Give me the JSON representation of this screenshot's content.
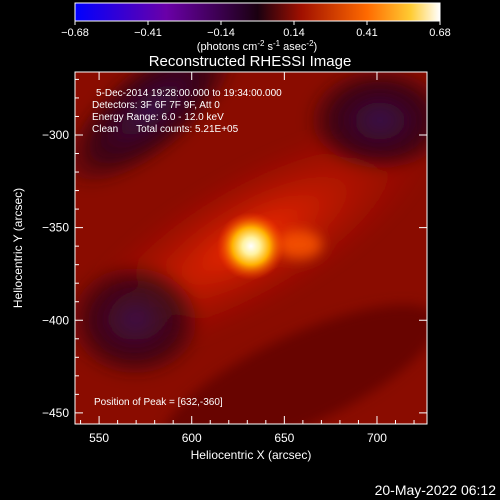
{
  "chart_data": {
    "type": "heatmap",
    "title": "Reconstructed RHESSI Image",
    "xlabel": "Heliocentric X (arcsec)",
    "ylabel": "Heliocentric Y (arcsec)",
    "xlim": [
      537,
      727
    ],
    "ylim": [
      -456,
      -266
    ],
    "xticks": [
      550,
      600,
      650,
      700
    ],
    "yticks": [
      -300,
      -350,
      -400,
      -450
    ],
    "colorbar": {
      "min": -0.68,
      "max": 0.68,
      "ticks": [
        "-0.68",
        "-0.41",
        "-0.14",
        "0.14",
        "0.41",
        "0.68"
      ],
      "unit_label": "(photons cm",
      "unit_sup1": "-2",
      "unit_mid": " s",
      "unit_sup2": "-1",
      "unit_mid2": " asec",
      "unit_sup3": "-2",
      "unit_end": ")"
    },
    "peak": {
      "x": 632,
      "y": -360,
      "value": 0.68
    },
    "annotations": {
      "time": "5-Dec-2014 19:28:00.000 to 19:34:00.000",
      "detectors": "Detectors: 3F 6F 7F 9F, Att 0",
      "energy": "Energy Range: 6.0 - 12.0 keV",
      "clean": "Clean",
      "counts": "Total counts: 5.21E+05",
      "peak_text": "Position of Peak = [632,-360]"
    }
  },
  "footer": {
    "timestamp": "20-May-2022 06:12"
  }
}
